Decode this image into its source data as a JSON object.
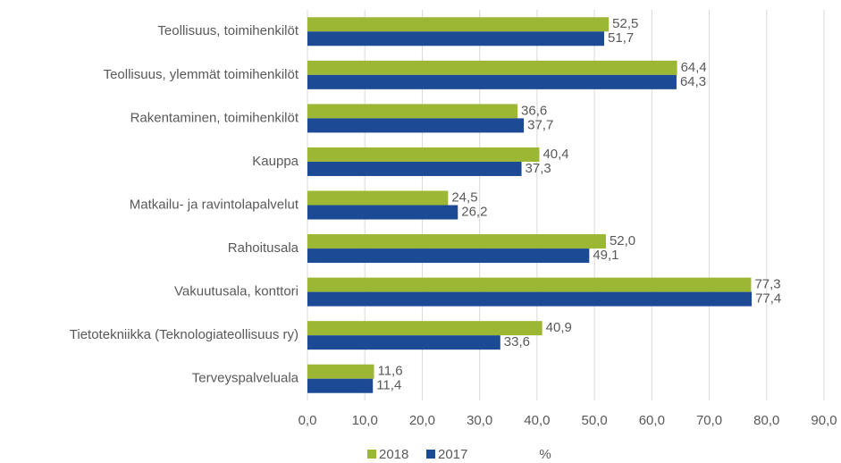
{
  "chart_data": {
    "type": "hbar",
    "categories": [
      "Teollisuus, toimihenkilöt",
      "Teollisuus, ylemmät toimihenkilöt",
      "Rakentaminen, toimihenkilöt",
      "Kauppa",
      "Matkailu- ja ravintolapalvelut",
      "Rahoitusala",
      "Vakuutusala, konttori",
      "Tietotekniikka (Teknologiateollisuus ry)",
      "Terveyspalveluala"
    ],
    "series": [
      {
        "name": "2018",
        "color": "#9cb733",
        "values": [
          52.5,
          64.4,
          36.6,
          40.4,
          24.5,
          52.0,
          77.3,
          40.9,
          11.6
        ],
        "value_labels": [
          "52,5",
          "64,4",
          "36,6",
          "40,4",
          "24,5",
          "52,0",
          "77,3",
          "40,9",
          "11,6"
        ]
      },
      {
        "name": "2017",
        "color": "#1c4a94",
        "values": [
          51.7,
          64.3,
          37.7,
          37.3,
          26.2,
          49.1,
          77.4,
          33.6,
          11.4
        ],
        "value_labels": [
          "51,7",
          "64,3",
          "37,7",
          "37,3",
          "26,2",
          "49,1",
          "77,4",
          "33,6",
          "11,4"
        ]
      }
    ],
    "xlabel": "%",
    "xlim": [
      0,
      90
    ],
    "xticks": [
      {
        "value": 0,
        "label": "0,0"
      },
      {
        "value": 10,
        "label": "10,0"
      },
      {
        "value": 20,
        "label": "20,0"
      },
      {
        "value": 30,
        "label": "30,0"
      },
      {
        "value": 40,
        "label": "40,0"
      },
      {
        "value": 50,
        "label": "50,0"
      },
      {
        "value": 60,
        "label": "60,0"
      },
      {
        "value": 70,
        "label": "70,0"
      },
      {
        "value": 80,
        "label": "80,0"
      },
      {
        "value": 90,
        "label": "90,0"
      }
    ],
    "grid": true,
    "legend": "bottom"
  }
}
